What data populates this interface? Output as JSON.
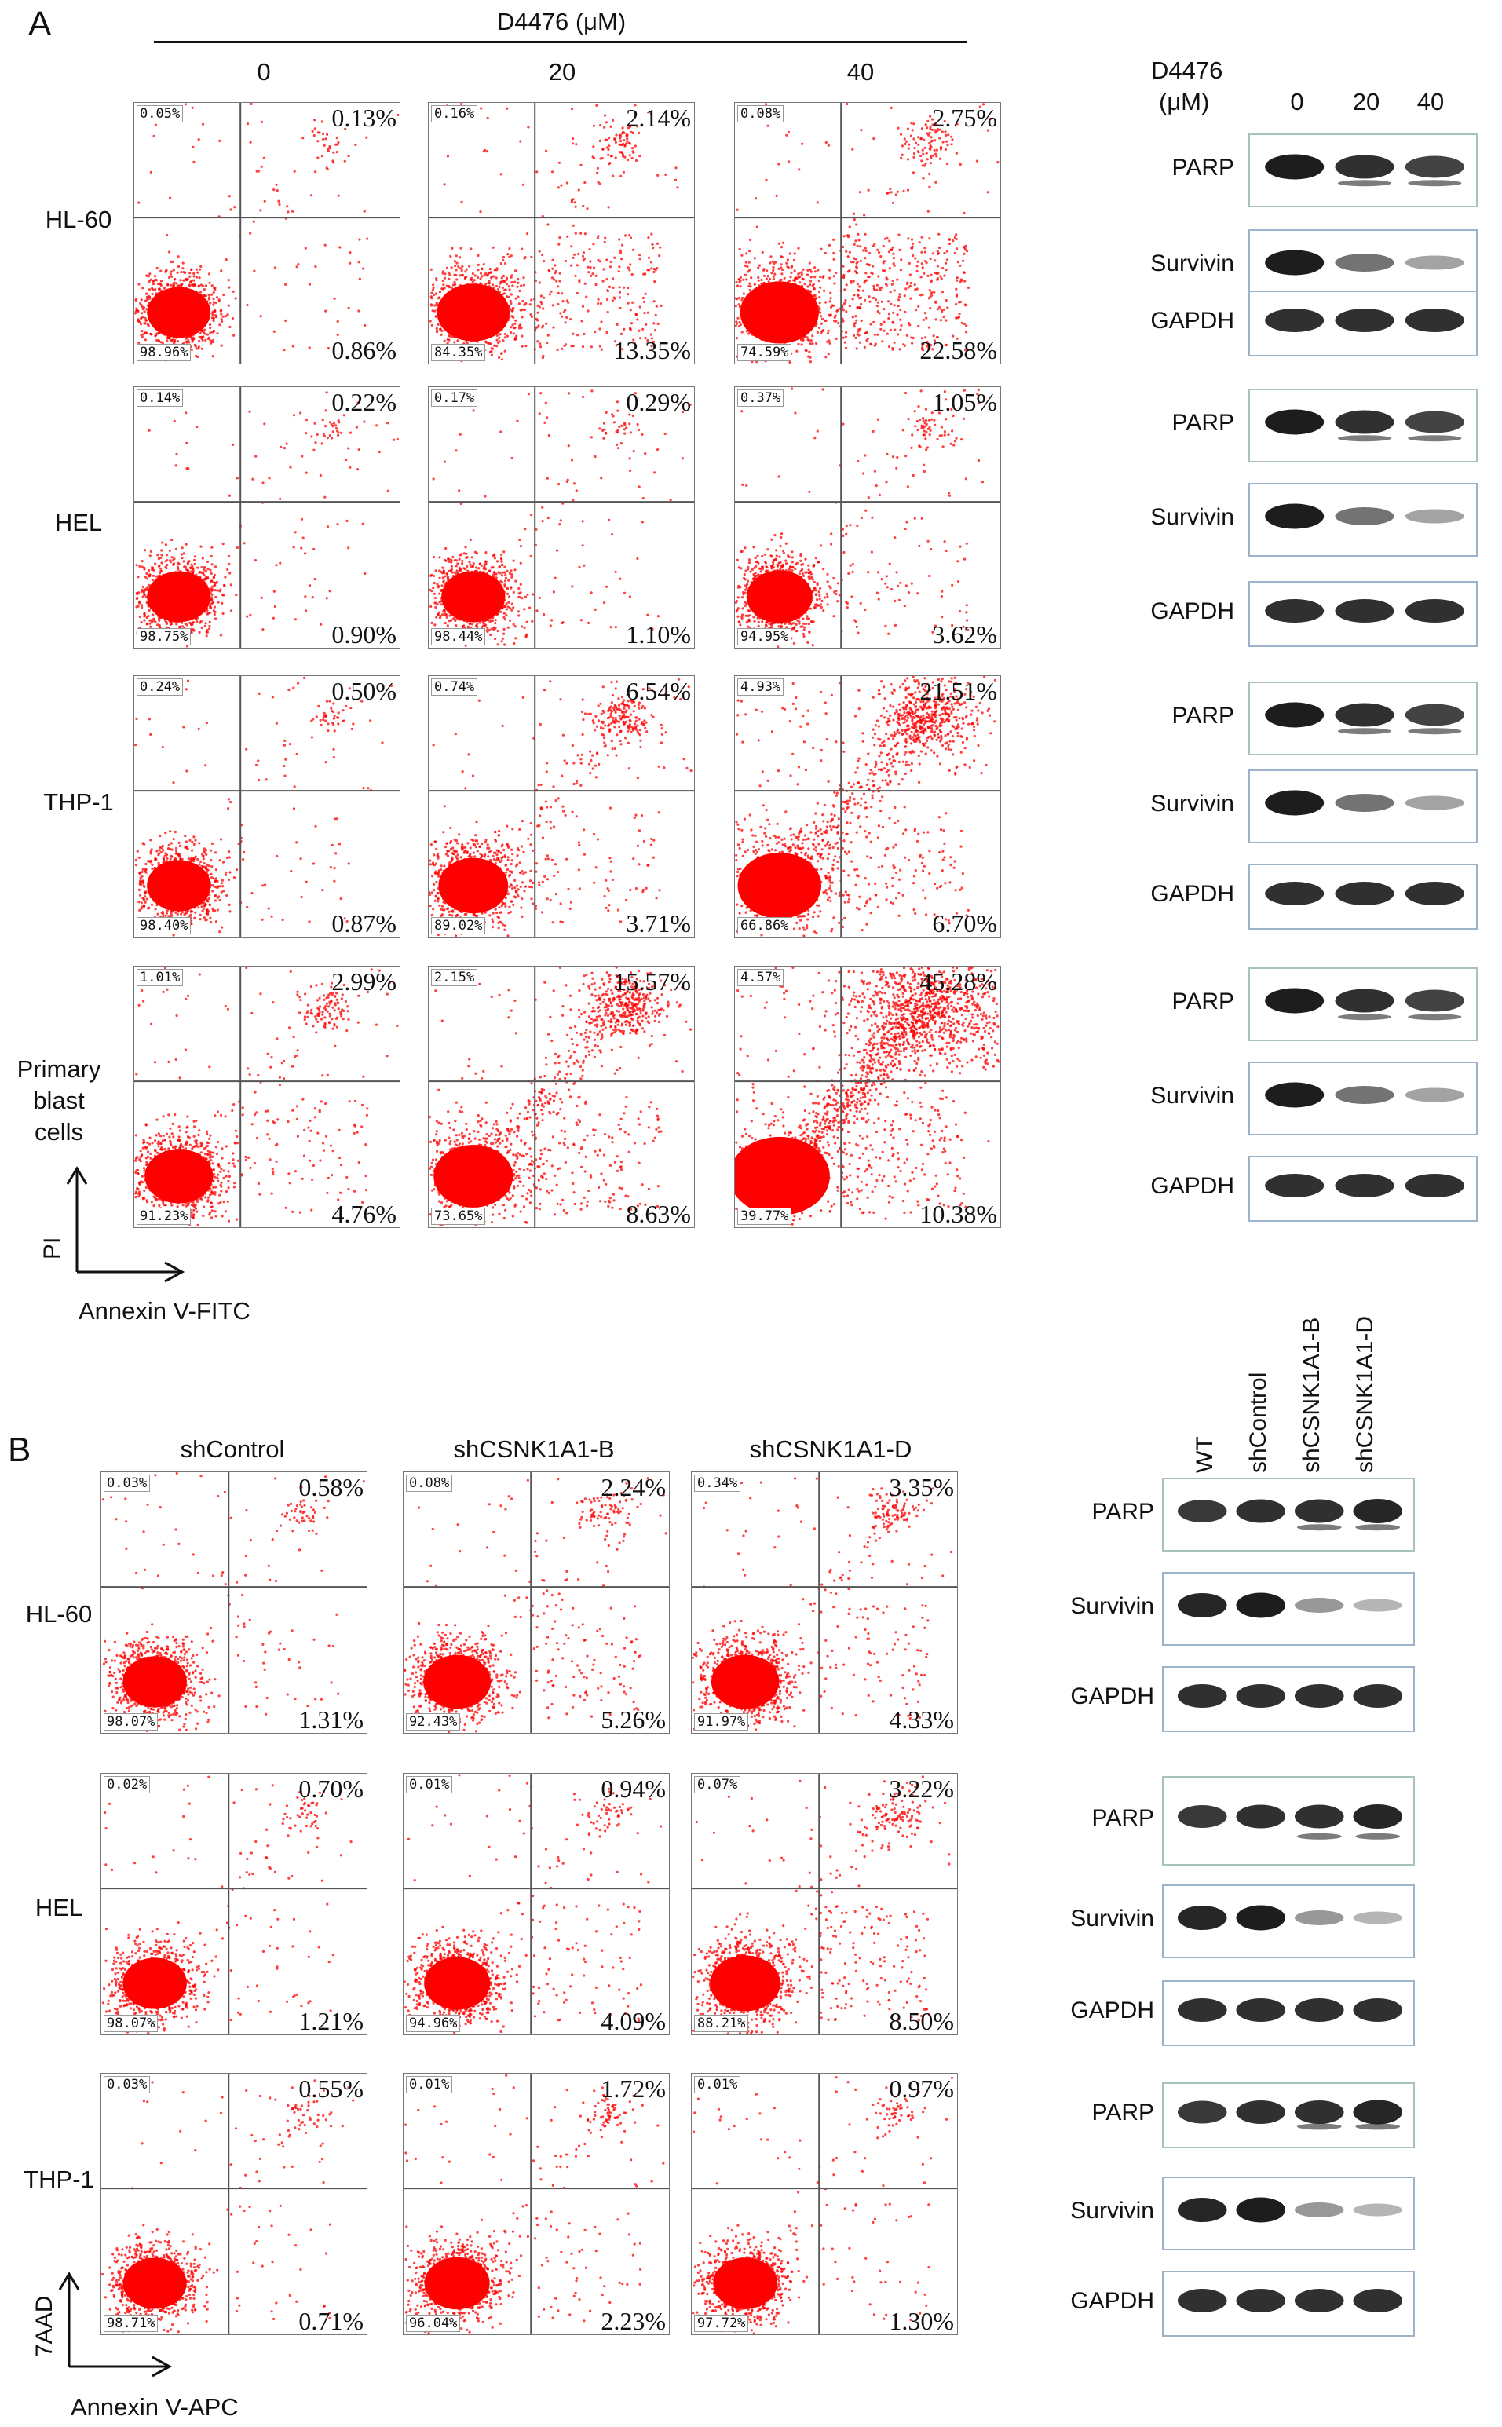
{
  "panel_a": {
    "letter": "A",
    "treatment_title": "D4476 (μM)",
    "concentrations": [
      "0",
      "20",
      "40"
    ],
    "rows": [
      {
        "name": "HL-60",
        "plots": [
          {
            "ul": "0.05%",
            "ur": "0.13%",
            "ll": "98.96%",
            "lr": "0.86%"
          },
          {
            "ul": "0.16%",
            "ur": "2.14%",
            "ll": "84.35%",
            "lr": "13.35%"
          },
          {
            "ul": "0.08%",
            "ur": "2.75%",
            "ll": "74.59%",
            "lr": "22.58%"
          }
        ]
      },
      {
        "name": "HEL",
        "plots": [
          {
            "ul": "0.14%",
            "ur": "0.22%",
            "ll": "98.75%",
            "lr": "0.90%"
          },
          {
            "ul": "0.17%",
            "ur": "0.29%",
            "ll": "98.44%",
            "lr": "1.10%"
          },
          {
            "ul": "0.37%",
            "ur": "1.05%",
            "ll": "94.95%",
            "lr": "3.62%"
          }
        ]
      },
      {
        "name": "THP-1",
        "plots": [
          {
            "ul": "0.24%",
            "ur": "0.50%",
            "ll": "98.40%",
            "lr": "0.87%"
          },
          {
            "ul": "0.74%",
            "ur": "6.54%",
            "ll": "89.02%",
            "lr": "3.71%"
          },
          {
            "ul": "4.93%",
            "ur": "21.51%",
            "ll": "66.86%",
            "lr": "6.70%"
          }
        ]
      },
      {
        "name": "Primary blast cells",
        "plots": [
          {
            "ul": "1.01%",
            "ur": "2.99%",
            "ll": "91.23%",
            "lr": "4.76%"
          },
          {
            "ul": "2.15%",
            "ur": "15.57%",
            "ll": "73.65%",
            "lr": "8.63%"
          },
          {
            "ul": "4.57%",
            "ur": "45.28%",
            "ll": "39.77%",
            "lr": "10.38%"
          }
        ]
      }
    ],
    "y_axis": "PI",
    "x_axis": "Annexin V-FITC",
    "blot_header": {
      "title": "D4476 (μM)",
      "lanes": [
        "0",
        "20",
        "40"
      ]
    },
    "blots": [
      "PARP",
      "Survivin",
      "GAPDH",
      "PARP",
      "Survivin",
      "GAPDH",
      "PARP",
      "Survivin",
      "GAPDH",
      "PARP",
      "Survivin",
      "GAPDH"
    ]
  },
  "panel_b": {
    "letter": "B",
    "conditions": [
      "shControl",
      "shCSNK1A1-B",
      "shCSNK1A1-D"
    ],
    "rows": [
      {
        "name": "HL-60",
        "plots": [
          {
            "ul": "0.03%",
            "ur": "0.58%",
            "ll": "98.07%",
            "lr": "1.31%"
          },
          {
            "ul": "0.08%",
            "ur": "2.24%",
            "ll": "92.43%",
            "lr": "5.26%"
          },
          {
            "ul": "0.34%",
            "ur": "3.35%",
            "ll": "91.97%",
            "lr": "4.33%"
          }
        ]
      },
      {
        "name": "HEL",
        "plots": [
          {
            "ul": "0.02%",
            "ur": "0.70%",
            "ll": "98.07%",
            "lr": "1.21%"
          },
          {
            "ul": "0.01%",
            "ur": "0.94%",
            "ll": "94.96%",
            "lr": "4.09%"
          },
          {
            "ul": "0.07%",
            "ur": "3.22%",
            "ll": "88.21%",
            "lr": "8.50%"
          }
        ]
      },
      {
        "name": "THP-1",
        "plots": [
          {
            "ul": "0.03%",
            "ur": "0.55%",
            "ll": "98.71%",
            "lr": "0.71%"
          },
          {
            "ul": "0.01%",
            "ur": "1.72%",
            "ll": "96.04%",
            "lr": "2.23%"
          },
          {
            "ul": "0.01%",
            "ur": "0.97%",
            "ll": "97.72%",
            "lr": "1.30%"
          }
        ]
      }
    ],
    "y_axis": "7AAD",
    "x_axis": "Annexin V-APC",
    "blot_lanes": [
      "WT",
      "shControl",
      "shCSNK1A1-B",
      "shCSNK1A1-D"
    ],
    "blots": [
      "PARP",
      "Survivin",
      "GAPDH",
      "PARP",
      "Survivin",
      "GAPDH",
      "PARP",
      "Survivin",
      "GAPDH"
    ]
  },
  "colors": {
    "dots": "#ff0000",
    "quadrant_lines": "#555555",
    "blot_border": "#9db3cc"
  }
}
